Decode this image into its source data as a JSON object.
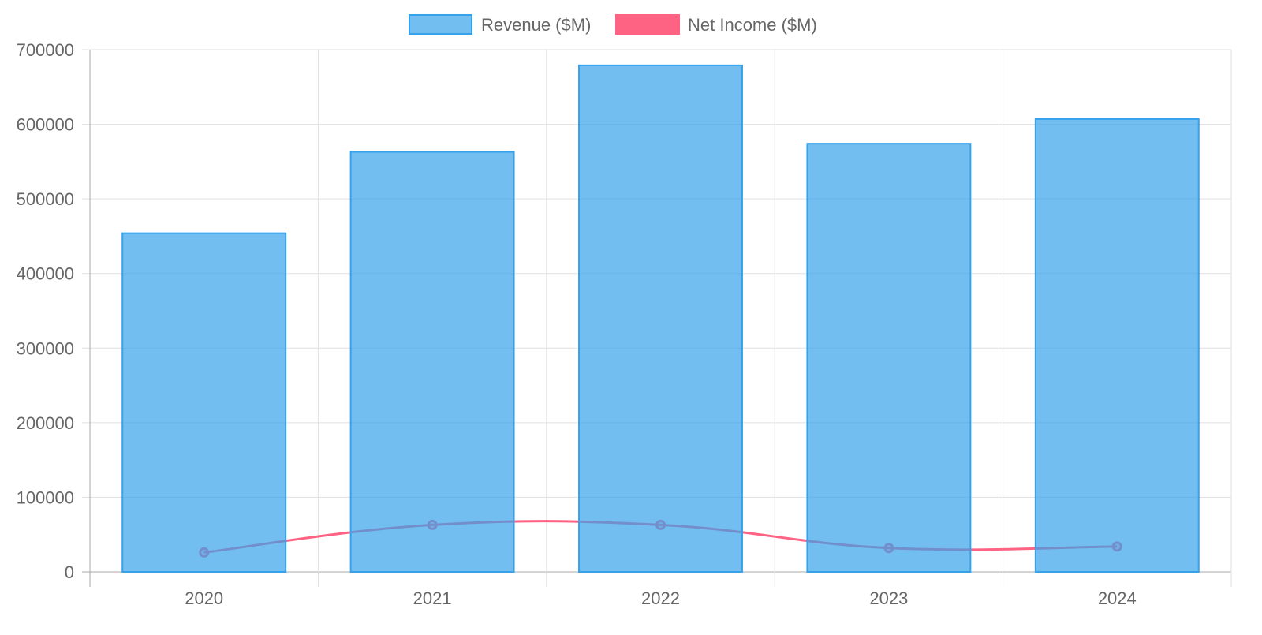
{
  "chart_data": {
    "type": "bar",
    "categories": [
      "2020",
      "2021",
      "2022",
      "2023",
      "2024"
    ],
    "series": [
      {
        "name": "Revenue ($M)",
        "type": "bar",
        "values": [
          454000,
          563000,
          679000,
          574000,
          607000
        ],
        "color": "#36a2eb",
        "fill": "rgba(54,162,235,0.7)"
      },
      {
        "name": "Net Income ($M)",
        "type": "line",
        "values": [
          26000,
          63000,
          63000,
          32000,
          34000
        ],
        "color": "#ff6384"
      }
    ],
    "ylim": [
      0,
      700000
    ],
    "yticks": [
      "0",
      "100000",
      "200000",
      "300000",
      "400000",
      "500000",
      "600000",
      "700000"
    ],
    "grid": true,
    "legend": "top-center"
  }
}
